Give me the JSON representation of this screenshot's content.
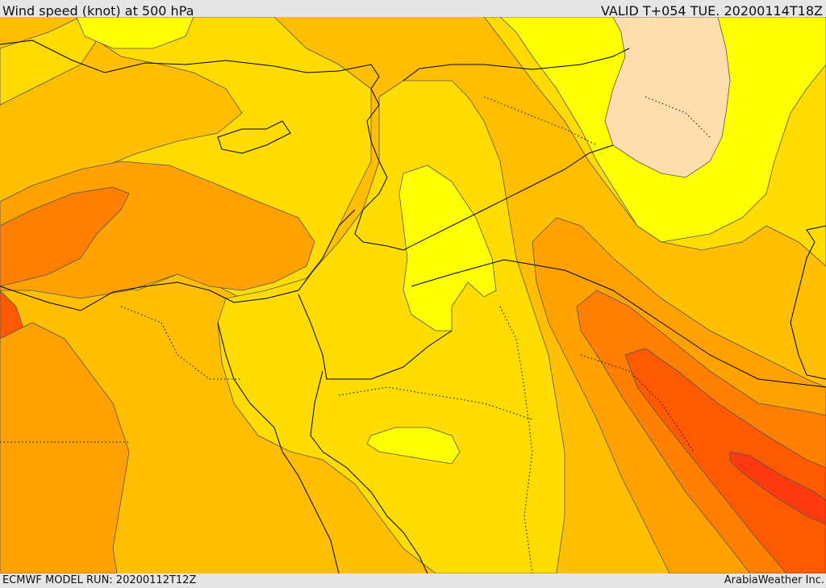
{
  "header": {
    "title": "Wind speed (knot) at 500 hPa",
    "valid": "VALID T+054 TUE. 20200114T18Z"
  },
  "footer": {
    "model_run": "ECMWF MODEL RUN: 20200112T12Z",
    "credit": "ArabiaWeather Inc."
  },
  "colors": {
    "band_light_yellow": "#ffff00",
    "band_yellow": "#ffdc00",
    "band_gold": "#ffbf00",
    "band_orange": "#ffa200",
    "band_dark_orange": "#ff8000",
    "band_red_orange": "#ff5a00",
    "band_red": "#ff3a10",
    "band_peach": "#ffdead",
    "border": "#000000",
    "contour": "#555555"
  }
}
